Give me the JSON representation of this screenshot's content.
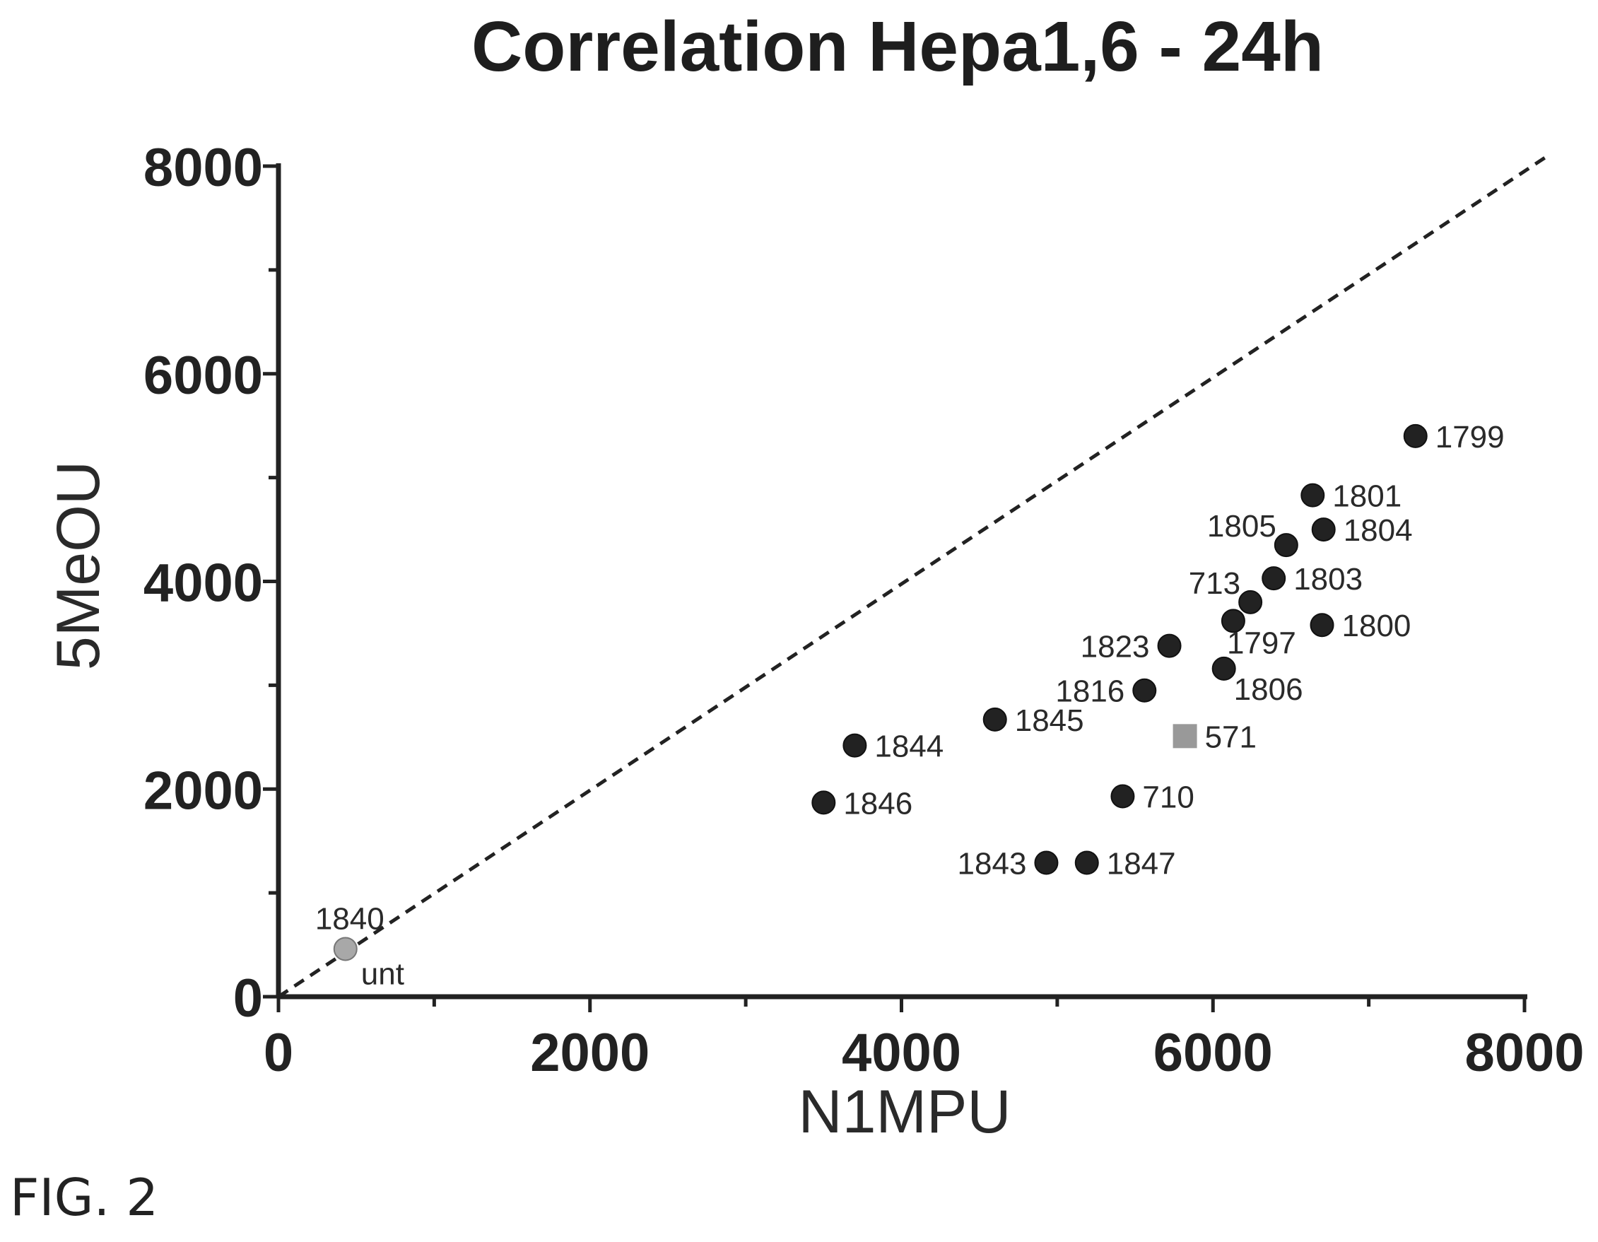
{
  "chart_data": {
    "type": "scatter",
    "title": "Correlation Hepa1,6 - 24h",
    "xlabel": "N1MPU",
    "ylabel": "5MeOU",
    "xlim": [
      0,
      8000
    ],
    "ylim": [
      0,
      8000
    ],
    "x_ticks": [
      "0",
      "2000",
      "4000",
      "6000",
      "8000"
    ],
    "y_ticks": [
      "0",
      "2000",
      "4000",
      "6000",
      "8000"
    ],
    "reference_line": {
      "style": "dashed",
      "from": [
        0,
        0
      ],
      "to": [
        8150,
        8100
      ]
    },
    "points": [
      {
        "label": "1799",
        "x": 7300,
        "y": 5400,
        "marker": "circle",
        "color": "#222222",
        "label_pos": "right"
      },
      {
        "label": "1801",
        "x": 6640,
        "y": 4830,
        "marker": "circle",
        "color": "#222222",
        "label_pos": "right"
      },
      {
        "label": "1804",
        "x": 6710,
        "y": 4500,
        "marker": "circle",
        "color": "#222222",
        "label_pos": "right"
      },
      {
        "label": "1805",
        "x": 6470,
        "y": 4350,
        "marker": "circle",
        "color": "#222222",
        "label_pos": "upper-left"
      },
      {
        "label": "1803",
        "x": 6390,
        "y": 4030,
        "marker": "circle",
        "color": "#222222",
        "label_pos": "right"
      },
      {
        "label": "713",
        "x": 6240,
        "y": 3800,
        "marker": "circle",
        "color": "#222222",
        "label_pos": "upper-left"
      },
      {
        "label": "1797",
        "x": 6130,
        "y": 3620,
        "marker": "circle",
        "color": "#222222",
        "label_pos": "below"
      },
      {
        "label": "1800",
        "x": 6700,
        "y": 3580,
        "marker": "circle",
        "color": "#222222",
        "label_pos": "right"
      },
      {
        "label": "1823",
        "x": 5720,
        "y": 3380,
        "marker": "circle",
        "color": "#222222",
        "label_pos": "left"
      },
      {
        "label": "1806",
        "x": 6070,
        "y": 3160,
        "marker": "circle",
        "color": "#222222",
        "label_pos": "lower-right"
      },
      {
        "label": "1816",
        "x": 5560,
        "y": 2950,
        "marker": "circle",
        "color": "#222222",
        "label_pos": "left"
      },
      {
        "label": "1845",
        "x": 4600,
        "y": 2670,
        "marker": "circle",
        "color": "#222222",
        "label_pos": "right"
      },
      {
        "label": "571",
        "x": 5820,
        "y": 2510,
        "marker": "square",
        "color": "#999999",
        "label_pos": "right"
      },
      {
        "label": "1844",
        "x": 3700,
        "y": 2420,
        "marker": "circle",
        "color": "#222222",
        "label_pos": "right"
      },
      {
        "label": "710",
        "x": 5420,
        "y": 1930,
        "marker": "circle",
        "color": "#222222",
        "label_pos": "right"
      },
      {
        "label": "1846",
        "x": 3500,
        "y": 1870,
        "marker": "circle",
        "color": "#222222",
        "label_pos": "right"
      },
      {
        "label": "1843",
        "x": 4930,
        "y": 1290,
        "marker": "circle",
        "color": "#222222",
        "label_pos": "left"
      },
      {
        "label": "1847",
        "x": 5190,
        "y": 1290,
        "marker": "circle",
        "color": "#222222",
        "label_pos": "right"
      },
      {
        "label": "1840",
        "x": 430,
        "y": 460,
        "marker": "circle",
        "color": "#a8a8a8",
        "label_pos": "above"
      }
    ],
    "annotations": [
      {
        "text": "unt",
        "x": 430,
        "y": 460,
        "pos": "lower-right"
      }
    ]
  },
  "figure_label": "FIG. 2"
}
